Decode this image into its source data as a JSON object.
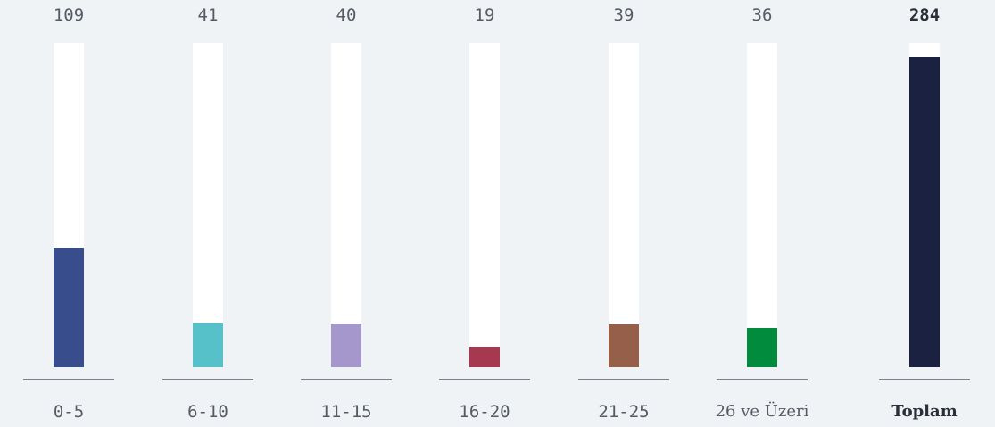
{
  "chart_data": {
    "type": "bar",
    "title": "",
    "xlabel": "",
    "ylabel": "",
    "ylim": [
      0,
      284
    ],
    "grid": false,
    "categories": [
      "0-5",
      "6-10",
      "11-15",
      "16-20",
      "21-25",
      "26 ve Üzeri",
      "Toplam"
    ],
    "values": [
      109,
      41,
      40,
      19,
      39,
      36,
      284
    ],
    "value_labels": [
      "109",
      "41",
      "40",
      "19",
      "39",
      "36",
      "284"
    ],
    "colors": [
      "#384d8c",
      "#56c1c9",
      "#a596cb",
      "#a6384f",
      "#955f4a",
      "#008c3c",
      "#1b2140"
    ],
    "track_color": "#ffffff",
    "background": "#eff3f6"
  }
}
